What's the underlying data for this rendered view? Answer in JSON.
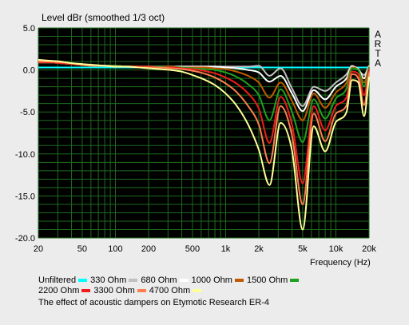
{
  "chart_data": {
    "type": "line",
    "title": "Level dBr (smoothed 1/3 oct)",
    "xlabel": "Frequency (Hz)",
    "ylabel": "",
    "xscale": "log",
    "xlim": [
      20,
      20000
    ],
    "ylim": [
      -20,
      5
    ],
    "grid": true,
    "background": "#000000",
    "grid_color": "#1f6b1f",
    "xticks": [
      20,
      50,
      100,
      200,
      500,
      1000,
      2000,
      5000,
      10000,
      20000
    ],
    "xtick_labels": [
      "20",
      "50",
      "100",
      "200",
      "500",
      "1k",
      "2k",
      "5k",
      "10k",
      "20k"
    ],
    "yticks": [
      5,
      0,
      -5,
      -10,
      -15,
      -20
    ],
    "ytick_labels": [
      "5.0",
      "0.0",
      "-5.0",
      "-10.0",
      "-15.0",
      "-20.0"
    ],
    "side_text": [
      "A",
      "R",
      "T",
      "A"
    ],
    "x": [
      20,
      25,
      32,
      40,
      50,
      63,
      80,
      100,
      125,
      160,
      200,
      250,
      315,
      400,
      500,
      630,
      800,
      1000,
      1250,
      1600,
      2000,
      2500,
      3150,
      4000,
      5000,
      6300,
      8000,
      10000,
      12500,
      14000,
      16000,
      18000,
      20000
    ],
    "series": [
      {
        "name": "Unfiltered",
        "color": "#00ffff",
        "values": [
          0.3,
          0.3,
          0.3,
          0.3,
          0.3,
          0.3,
          0.3,
          0.3,
          0.3,
          0.3,
          0.3,
          0.3,
          0.3,
          0.3,
          0.3,
          0.3,
          0.3,
          0.3,
          0.3,
          0.3,
          0.3,
          0.3,
          0.3,
          0.3,
          0.3,
          0.3,
          0.3,
          0.3,
          0.3,
          0.3,
          0.3,
          0.3,
          0.3
        ]
      },
      {
        "name": "330 Ohm",
        "color": "#c0c0c0",
        "values": [
          0.9,
          0.9,
          0.8,
          0.7,
          0.6,
          0.5,
          0.5,
          0.5,
          0.4,
          0.4,
          0.4,
          0.4,
          0.4,
          0.4,
          0.4,
          0.4,
          0.4,
          0.4,
          0.4,
          0.4,
          0.5,
          -0.7,
          0.2,
          -2.2,
          -4.3,
          -2.0,
          -2.5,
          -1.5,
          -0.5,
          0.5,
          0.0,
          -0.6,
          0.5
        ]
      },
      {
        "name": "680 Ohm",
        "color": "#ffffff",
        "values": [
          0.9,
          0.9,
          0.8,
          0.7,
          0.6,
          0.5,
          0.5,
          0.5,
          0.4,
          0.4,
          0.4,
          0.4,
          0.4,
          0.4,
          0.4,
          0.4,
          0.4,
          0.3,
          0.2,
          0.0,
          -0.3,
          -1.4,
          -0.7,
          -2.8,
          -4.9,
          -2.4,
          -3.5,
          -2.0,
          -1.0,
          0.4,
          0.1,
          -1.0,
          0.5
        ]
      },
      {
        "name": "1000 Ohm",
        "color": "#c05a00",
        "values": [
          0.9,
          0.9,
          0.8,
          0.7,
          0.6,
          0.5,
          0.5,
          0.5,
          0.4,
          0.4,
          0.4,
          0.4,
          0.4,
          0.3,
          0.3,
          0.3,
          0.2,
          0.1,
          -0.2,
          -0.7,
          -1.5,
          -3.3,
          -1.5,
          -3.7,
          -6.0,
          -2.8,
          -4.5,
          -2.7,
          -1.5,
          0.3,
          0.0,
          -1.5,
          0.4
        ]
      },
      {
        "name": "1500 Ohm",
        "color": "#20a020",
        "values": [
          0.9,
          0.9,
          0.8,
          0.7,
          0.6,
          0.5,
          0.5,
          0.5,
          0.4,
          0.4,
          0.4,
          0.4,
          0.3,
          0.3,
          0.2,
          0.1,
          0.0,
          -0.3,
          -0.8,
          -1.7,
          -3.0,
          -6.0,
          -2.3,
          -5.0,
          -8.6,
          -3.5,
          -5.8,
          -3.4,
          -2.2,
          0.2,
          0.0,
          -2.0,
          0.3
        ]
      },
      {
        "name": "2200 Ohm",
        "color": "#ee1c1c",
        "values": [
          0.9,
          0.9,
          0.8,
          0.7,
          0.6,
          0.5,
          0.5,
          0.4,
          0.4,
          0.4,
          0.4,
          0.3,
          0.3,
          0.2,
          0.1,
          -0.1,
          -0.4,
          -0.9,
          -1.6,
          -2.8,
          -4.6,
          -8.7,
          -3.2,
          -6.5,
          -13.5,
          -4.3,
          -7.2,
          -4.3,
          -3.2,
          -0.2,
          -0.5,
          -3.0,
          0.1
        ]
      },
      {
        "name": "3300 Ohm",
        "color": "#ff7f50",
        "values": [
          1.0,
          1.0,
          0.9,
          0.8,
          0.6,
          0.5,
          0.5,
          0.4,
          0.4,
          0.3,
          0.3,
          0.3,
          0.2,
          0.1,
          -0.1,
          -0.4,
          -0.9,
          -1.6,
          -2.6,
          -4.3,
          -6.5,
          -11.1,
          -4.3,
          -7.8,
          -16.0,
          -5.2,
          -8.5,
          -5.2,
          -4.2,
          -0.5,
          -1.0,
          -4.2,
          -0.3
        ]
      },
      {
        "name": "4700 Ohm",
        "color": "#ffff99",
        "values": [
          1.2,
          1.1,
          1.0,
          0.8,
          0.7,
          0.6,
          0.5,
          0.4,
          0.4,
          0.3,
          0.2,
          0.1,
          0.0,
          -0.2,
          -0.6,
          -1.1,
          -1.8,
          -2.8,
          -4.2,
          -6.5,
          -9.5,
          -13.7,
          -6.3,
          -9.6,
          -19.0,
          -6.7,
          -9.7,
          -6.2,
          -5.0,
          -1.2,
          -1.5,
          -5.5,
          -0.8
        ]
      }
    ]
  },
  "caption": "The effect of acoustic dampers on Etymotic Research ER-4"
}
